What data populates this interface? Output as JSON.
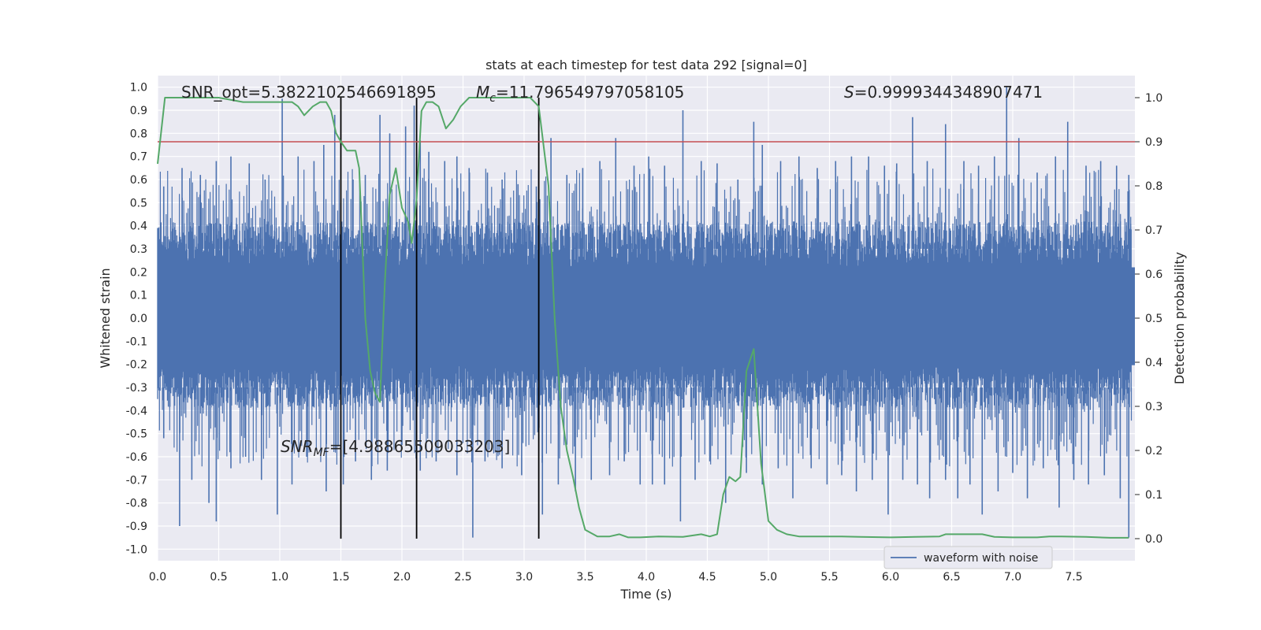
{
  "chart_data": {
    "type": "line",
    "title": "stats at each timestep for test data 292 [signal=0]",
    "xlabel": "Time (s)",
    "ylabel": "Whitened strain",
    "y2label": "Detection probability",
    "xlim": [
      0.0,
      8.0
    ],
    "ylim": [
      -1.05,
      1.05
    ],
    "y2lim": [
      -0.05,
      1.05
    ],
    "x_ticks": [
      "0.0",
      "0.5",
      "1.0",
      "1.5",
      "2.0",
      "2.5",
      "3.0",
      "3.5",
      "4.0",
      "4.5",
      "5.0",
      "5.5",
      "6.0",
      "6.5",
      "7.0",
      "7.5"
    ],
    "y_ticks": [
      "1.0",
      "0.9",
      "0.8",
      "0.7",
      "0.6",
      "0.5",
      "0.4",
      "0.3",
      "0.2",
      "0.1",
      "0.0",
      "-0.1",
      "-0.2",
      "-0.3",
      "-0.4",
      "-0.5",
      "-0.6",
      "-0.7",
      "-0.8",
      "-0.9",
      "-1.0"
    ],
    "y2_ticks": [
      "1.0",
      "0.9",
      "0.8",
      "0.7",
      "0.6",
      "0.5",
      "0.4",
      "0.3",
      "0.2",
      "0.1",
      "0.0"
    ],
    "grid": true,
    "legend": {
      "placement": "lower-right",
      "entries": [
        "waveform with noise"
      ]
    },
    "annotations": {
      "snr_opt": "SNR_opt=5.382210254669189​5",
      "mc_symbol": "M",
      "mc_sub": "c",
      "mc_value": "=11.796549797058105",
      "s_symbol": "S",
      "s_value": "=0.9999344348907471",
      "snr_mf_symbol": "SNR",
      "snr_mf_sub": "MF",
      "snr_mf_value": "=[4.98865509033203]"
    },
    "threshold": {
      "value": 0.9,
      "axis": "right",
      "color": "#c44e52"
    },
    "vertical_lines": [
      1.5,
      2.12,
      3.12
    ],
    "strain_envelope": {
      "upper_typical": 0.4,
      "lower_typical": -0.37
    },
    "series": [
      {
        "name": "waveform with noise",
        "axis": "left",
        "color": "#4c72b0",
        "upper_spikes": [
          [
            0.05,
            0.57
          ],
          [
            0.2,
            0.65
          ],
          [
            0.35,
            0.62
          ],
          [
            0.48,
            0.68
          ],
          [
            0.6,
            0.7
          ],
          [
            0.75,
            0.67
          ],
          [
            0.88,
            0.6
          ],
          [
            1.02,
            0.95
          ],
          [
            1.15,
            0.7
          ],
          [
            1.28,
            0.68
          ],
          [
            1.36,
            0.75
          ],
          [
            1.45,
            0.88
          ],
          [
            1.6,
            0.6
          ],
          [
            1.7,
            0.62
          ],
          [
            1.82,
            0.88
          ],
          [
            1.9,
            0.8
          ],
          [
            2.03,
            0.83
          ],
          [
            2.1,
            0.92
          ],
          [
            2.15,
            0.77
          ],
          [
            2.22,
            0.72
          ],
          [
            2.35,
            0.68
          ],
          [
            2.45,
            0.7
          ],
          [
            2.55,
            0.65
          ],
          [
            2.7,
            0.63
          ],
          [
            2.82,
            0.6
          ],
          [
            2.95,
            0.58
          ],
          [
            3.1,
            0.57
          ],
          [
            3.22,
            0.78
          ],
          [
            3.35,
            0.62
          ],
          [
            3.48,
            0.65
          ],
          [
            3.62,
            0.68
          ],
          [
            3.75,
            0.78
          ],
          [
            3.9,
            0.66
          ],
          [
            4.02,
            0.7
          ],
          [
            4.15,
            0.66
          ],
          [
            4.3,
            0.9
          ],
          [
            4.45,
            0.68
          ],
          [
            4.58,
            0.67
          ],
          [
            4.75,
            0.6
          ],
          [
            4.88,
            0.85
          ],
          [
            4.95,
            0.75
          ],
          [
            5.1,
            0.68
          ],
          [
            5.25,
            0.7
          ],
          [
            5.4,
            0.65
          ],
          [
            5.55,
            0.68
          ],
          [
            5.68,
            0.7
          ],
          [
            5.82,
            0.7
          ],
          [
            5.95,
            0.66
          ],
          [
            6.05,
            0.67
          ],
          [
            6.18,
            0.87
          ],
          [
            6.3,
            0.68
          ],
          [
            6.45,
            0.84
          ],
          [
            6.6,
            0.68
          ],
          [
            6.72,
            0.66
          ],
          [
            6.85,
            0.7
          ],
          [
            6.95,
            1.0
          ],
          [
            7.05,
            0.78
          ],
          [
            7.2,
            0.63
          ],
          [
            7.35,
            0.7
          ],
          [
            7.45,
            0.85
          ],
          [
            7.6,
            0.66
          ],
          [
            7.72,
            0.68
          ],
          [
            7.85,
            0.66
          ],
          [
            7.95,
            0.62
          ]
        ],
        "lower_spikes": [
          [
            0.05,
            -0.52
          ],
          [
            0.18,
            -0.9
          ],
          [
            0.28,
            -0.7
          ],
          [
            0.42,
            -0.8
          ],
          [
            0.48,
            -0.88
          ],
          [
            0.6,
            -0.65
          ],
          [
            0.72,
            -0.6
          ],
          [
            0.85,
            -0.7
          ],
          [
            0.98,
            -0.85
          ],
          [
            1.1,
            -0.72
          ],
          [
            1.22,
            -0.6
          ],
          [
            1.38,
            -0.75
          ],
          [
            1.52,
            -0.72
          ],
          [
            1.62,
            -0.62
          ],
          [
            1.75,
            -0.7
          ],
          [
            1.88,
            -0.66
          ],
          [
            2.0,
            -0.55
          ],
          [
            2.15,
            -0.66
          ],
          [
            2.28,
            -0.62
          ],
          [
            2.45,
            -0.68
          ],
          [
            2.58,
            -0.95
          ],
          [
            2.68,
            -0.62
          ],
          [
            2.82,
            -0.65
          ],
          [
            2.98,
            -0.68
          ],
          [
            3.15,
            -0.85
          ],
          [
            3.28,
            -0.72
          ],
          [
            3.42,
            -0.75
          ],
          [
            3.55,
            -0.7
          ],
          [
            3.7,
            -0.68
          ],
          [
            3.82,
            -0.62
          ],
          [
            3.95,
            -0.72
          ],
          [
            4.05,
            -0.72
          ],
          [
            4.15,
            -0.72
          ],
          [
            4.28,
            -0.88
          ],
          [
            4.4,
            -0.7
          ],
          [
            4.52,
            -0.62
          ],
          [
            4.65,
            -0.8
          ],
          [
            4.82,
            -0.67
          ],
          [
            4.95,
            -0.72
          ],
          [
            5.08,
            -0.65
          ],
          [
            5.2,
            -0.78
          ],
          [
            5.35,
            -0.65
          ],
          [
            5.48,
            -0.72
          ],
          [
            5.6,
            -0.68
          ],
          [
            5.72,
            -0.75
          ],
          [
            5.85,
            -0.7
          ],
          [
            5.98,
            -0.85
          ],
          [
            6.1,
            -0.7
          ],
          [
            6.22,
            -0.72
          ],
          [
            6.32,
            -0.78
          ],
          [
            6.45,
            -0.7
          ],
          [
            6.55,
            -0.78
          ],
          [
            6.65,
            -0.72
          ],
          [
            6.75,
            -0.85
          ],
          [
            6.88,
            -0.75
          ],
          [
            7.0,
            -0.67
          ],
          [
            7.12,
            -0.78
          ],
          [
            7.25,
            -0.65
          ],
          [
            7.38,
            -0.82
          ],
          [
            7.5,
            -0.7
          ],
          [
            7.62,
            -0.72
          ],
          [
            7.75,
            -0.68
          ],
          [
            7.88,
            -0.78
          ],
          [
            7.95,
            -0.95
          ]
        ]
      },
      {
        "name": "detection probability",
        "axis": "right",
        "color": "#55a868",
        "x": [
          0.0,
          0.06,
          0.12,
          0.3,
          0.5,
          0.7,
          0.8,
          0.9,
          1.0,
          1.1,
          1.15,
          1.2,
          1.27,
          1.33,
          1.38,
          1.42,
          1.46,
          1.5,
          1.55,
          1.62,
          1.65,
          1.7,
          1.74,
          1.78,
          1.82,
          1.86,
          1.9,
          1.95,
          2.0,
          2.05,
          2.08,
          2.12,
          2.16,
          2.2,
          2.25,
          2.3,
          2.36,
          2.42,
          2.48,
          2.55,
          2.7,
          2.9,
          3.05,
          3.12,
          3.2,
          3.25,
          3.3,
          3.35,
          3.4,
          3.45,
          3.5,
          3.6,
          3.7,
          3.78,
          3.85,
          3.95,
          4.1,
          4.3,
          4.45,
          4.52,
          4.58,
          4.63,
          4.68,
          4.73,
          4.77,
          4.82,
          4.88,
          4.94,
          5.0,
          5.07,
          5.15,
          5.25,
          5.4,
          5.6,
          5.75,
          6.0,
          6.2,
          6.4,
          6.45,
          6.5,
          6.55,
          6.65,
          6.75,
          6.85,
          7.0,
          7.2,
          7.3,
          7.4,
          7.6,
          7.8,
          7.95
        ],
        "values": [
          0.85,
          1.0,
          1.0,
          1.0,
          1.0,
          0.99,
          0.99,
          0.99,
          0.99,
          0.99,
          0.98,
          0.96,
          0.98,
          0.99,
          0.99,
          0.97,
          0.92,
          0.9,
          0.88,
          0.88,
          0.84,
          0.5,
          0.38,
          0.33,
          0.31,
          0.58,
          0.78,
          0.84,
          0.75,
          0.72,
          0.67,
          0.77,
          0.97,
          0.99,
          0.99,
          0.98,
          0.93,
          0.95,
          0.98,
          1.0,
          1.0,
          1.0,
          1.0,
          0.98,
          0.8,
          0.5,
          0.3,
          0.2,
          0.14,
          0.07,
          0.02,
          0.005,
          0.005,
          0.01,
          0.003,
          0.003,
          0.005,
          0.004,
          0.01,
          0.005,
          0.01,
          0.1,
          0.14,
          0.13,
          0.14,
          0.38,
          0.43,
          0.17,
          0.04,
          0.02,
          0.01,
          0.005,
          0.005,
          0.005,
          0.004,
          0.003,
          0.004,
          0.005,
          0.01,
          0.01,
          0.01,
          0.01,
          0.01,
          0.004,
          0.003,
          0.003,
          0.005,
          0.005,
          0.004,
          0.002,
          0.002
        ]
      }
    ]
  }
}
